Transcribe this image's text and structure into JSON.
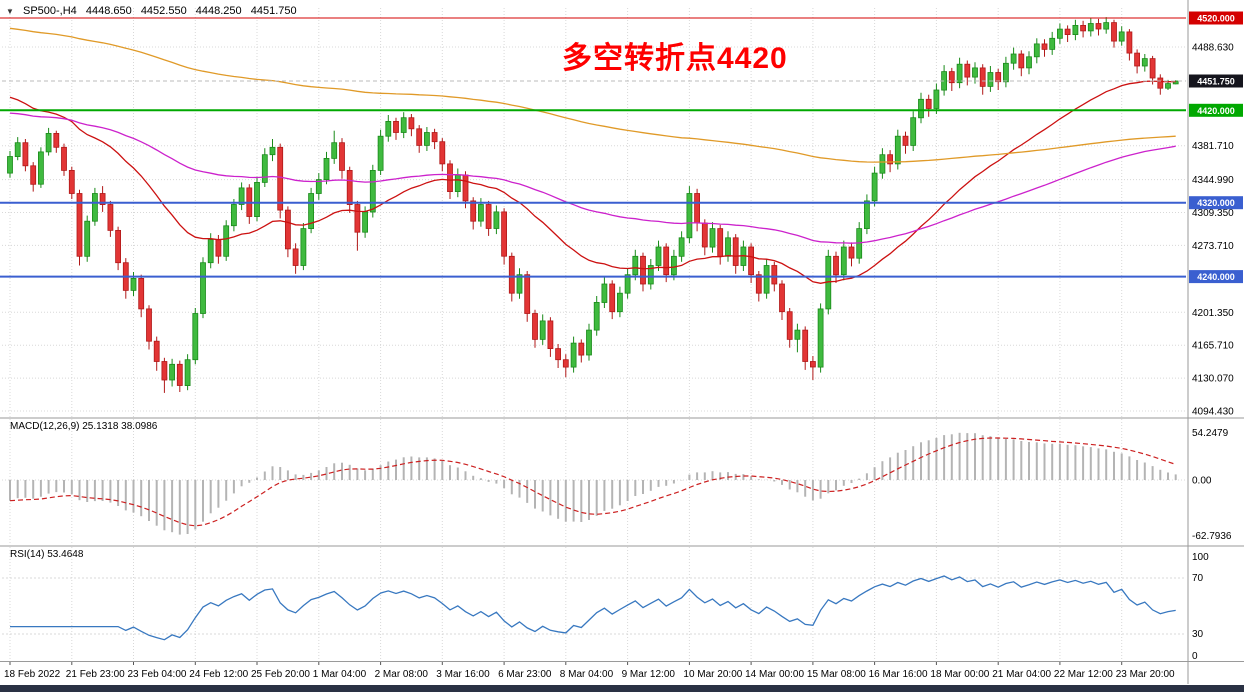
{
  "colors": {
    "up_fill": "#3fba3f",
    "up_stroke": "#1a8a1a",
    "down_fill": "#e23535",
    "down_stroke": "#b01818",
    "grid": "#d8d8d8",
    "separator": "#9a9a9a",
    "macd_hist": "#b4b4b4",
    "macd_signal": "#cc2020",
    "rsi_line": "#3878c0",
    "current_line": "#bbbbbb",
    "bottom_bar": "#2a3144",
    "axis_text": "#000000",
    "annotation_red": "#fe0000"
  },
  "icons": {
    "header_marker": "▼"
  },
  "header": {
    "symbol_period": "SP500-,H4",
    "open": "4448.650",
    "high": "4452.550",
    "low": "4448.250",
    "close": "4451.750"
  },
  "annotation": {
    "text": "多空转折点4420"
  },
  "main_chart": {
    "price_axis": {
      "plain_labels": [
        "4488.630",
        "4381.710",
        "4344.990",
        "4309.350",
        "4273.710",
        "4201.350",
        "4165.710",
        "4130.070",
        "4094.430"
      ],
      "badges": [
        {
          "value": "4520.000",
          "price": 4520.0,
          "color": "#d40000",
          "type": "hline-red"
        },
        {
          "value": "4451.750",
          "price": 4451.75,
          "color": "#15151d",
          "type": "current-price"
        },
        {
          "value": "4420.000",
          "price": 4420.0,
          "color": "#00a800",
          "type": "hline-green"
        },
        {
          "value": "4320.000",
          "price": 4320.0,
          "color": "#3a5fd0",
          "type": "hline-blue"
        },
        {
          "value": "4240.000",
          "price": 4240.0,
          "color": "#3a5fd0",
          "type": "hline-blue"
        }
      ]
    }
  },
  "macd": {
    "label": "MACD(12,26,9) 25.1318 38.0986",
    "value_main": 25.1318,
    "value_signal": 38.0986,
    "axis_labels": [
      "54.2479",
      "0.00",
      "-62.7936"
    ],
    "axis_max": 54.2479,
    "axis_min": -62.7936,
    "seed_fast": 4372,
    "seed_slow": 4398
  },
  "rsi": {
    "label": "RSI(14) 53.4648",
    "value": 53.4648,
    "period": 14,
    "levels": [
      70,
      30
    ],
    "axis_labels": [
      "100",
      "70",
      "30",
      "0"
    ]
  },
  "chart_data": {
    "type": "candlestick",
    "symbol": "SP500-",
    "timeframe": "H4",
    "current_price": 4451.75,
    "candles_per_label": 8,
    "x_labels": [
      "18 Feb 2022",
      "21 Feb 23:00",
      "23 Feb 04:00",
      "24 Feb 12:00",
      "25 Feb 20:00",
      "1 Mar 04:00",
      "2 Mar 08:00",
      "3 Mar 16:00",
      "6 Mar 23:00",
      "8 Mar 04:00",
      "9 Mar 12:00",
      "10 Mar 20:00",
      "14 Mar 00:00",
      "15 Mar 08:00",
      "16 Mar 16:00",
      "18 Mar 00:00",
      "21 Mar 04:00",
      "22 Mar 12:00",
      "23 Mar 20:00"
    ],
    "hlines": [
      {
        "price": 4520,
        "color": "#d40000",
        "width": 1
      },
      {
        "price": 4420,
        "color": "#00a800",
        "width": 2
      },
      {
        "price": 4320,
        "color": "#3a5fd0",
        "width": 2
      },
      {
        "price": 4240,
        "color": "#3a5fd0",
        "width": 2
      }
    ],
    "overlays": [
      {
        "name": "ma-fast-red",
        "type": "ema",
        "period": 34,
        "seed": 4438,
        "color": "#cc1111"
      },
      {
        "name": "ma-mid-magenta",
        "type": "ema",
        "period": 100,
        "seed": 4418,
        "color": "#cc22cc"
      },
      {
        "name": "ma-slow-orange",
        "type": "ema",
        "period": 240,
        "seed": 4510,
        "color": "#e09a28"
      }
    ],
    "ohlc": [
      [
        4352,
        4376,
        4347,
        4370
      ],
      [
        4370,
        4391,
        4366,
        4385
      ],
      [
        4385,
        4389,
        4354,
        4360
      ],
      [
        4360,
        4364,
        4332,
        4340
      ],
      [
        4340,
        4380,
        4336,
        4375
      ],
      [
        4375,
        4401,
        4371,
        4395
      ],
      [
        4395,
        4398,
        4374,
        4380
      ],
      [
        4380,
        4384,
        4349,
        4355
      ],
      [
        4355,
        4359,
        4324,
        4330
      ],
      [
        4330,
        4334,
        4252,
        4262
      ],
      [
        4262,
        4306,
        4256,
        4300
      ],
      [
        4300,
        4336,
        4295,
        4330
      ],
      [
        4330,
        4338,
        4310,
        4318
      ],
      [
        4318,
        4322,
        4283,
        4290
      ],
      [
        4290,
        4294,
        4247,
        4255
      ],
      [
        4255,
        4260,
        4216,
        4225
      ],
      [
        4225,
        4245,
        4219,
        4238
      ],
      [
        4238,
        4242,
        4196,
        4205
      ],
      [
        4205,
        4209,
        4161,
        4170
      ],
      [
        4170,
        4175,
        4138,
        4148
      ],
      [
        4148,
        4152,
        4114,
        4128
      ],
      [
        4128,
        4151,
        4121,
        4145
      ],
      [
        4145,
        4149,
        4115,
        4122
      ],
      [
        4122,
        4156,
        4117,
        4150
      ],
      [
        4150,
        4206,
        4145,
        4200
      ],
      [
        4200,
        4261,
        4195,
        4255
      ],
      [
        4255,
        4287,
        4249,
        4280
      ],
      [
        4280,
        4285,
        4254,
        4262
      ],
      [
        4262,
        4301,
        4257,
        4295
      ],
      [
        4295,
        4324,
        4289,
        4318
      ],
      [
        4318,
        4342,
        4312,
        4336
      ],
      [
        4336,
        4340,
        4297,
        4305
      ],
      [
        4305,
        4348,
        4300,
        4342
      ],
      [
        4342,
        4379,
        4337,
        4372
      ],
      [
        4372,
        4389,
        4365,
        4380
      ],
      [
        4380,
        4384,
        4303,
        4312
      ],
      [
        4312,
        4316,
        4261,
        4270
      ],
      [
        4270,
        4276,
        4243,
        4252
      ],
      [
        4252,
        4298,
        4247,
        4292
      ],
      [
        4292,
        4336,
        4287,
        4330
      ],
      [
        4330,
        4352,
        4323,
        4345
      ],
      [
        4345,
        4375,
        4340,
        4368
      ],
      [
        4368,
        4398,
        4362,
        4385
      ],
      [
        4385,
        4390,
        4346,
        4355
      ],
      [
        4355,
        4359,
        4309,
        4318
      ],
      [
        4318,
        4322,
        4268,
        4288
      ],
      [
        4288,
        4316,
        4282,
        4310
      ],
      [
        4310,
        4361,
        4304,
        4355
      ],
      [
        4355,
        4399,
        4350,
        4392
      ],
      [
        4392,
        4415,
        4386,
        4408
      ],
      [
        4408,
        4412,
        4388,
        4396
      ],
      [
        4396,
        4418,
        4390,
        4412
      ],
      [
        4412,
        4416,
        4392,
        4400
      ],
      [
        4400,
        4404,
        4374,
        4382
      ],
      [
        4382,
        4402,
        4376,
        4396
      ],
      [
        4396,
        4400,
        4378,
        4386
      ],
      [
        4386,
        4390,
        4354,
        4362
      ],
      [
        4362,
        4366,
        4324,
        4332
      ],
      [
        4332,
        4357,
        4326,
        4350
      ],
      [
        4350,
        4354,
        4314,
        4322
      ],
      [
        4322,
        4326,
        4291,
        4300
      ],
      [
        4300,
        4325,
        4294,
        4318
      ],
      [
        4318,
        4322,
        4284,
        4292
      ],
      [
        4292,
        4317,
        4286,
        4310
      ],
      [
        4310,
        4314,
        4253,
        4262
      ],
      [
        4262,
        4266,
        4213,
        4222
      ],
      [
        4222,
        4249,
        4216,
        4242
      ],
      [
        4242,
        4246,
        4191,
        4200
      ],
      [
        4200,
        4204,
        4163,
        4172
      ],
      [
        4172,
        4199,
        4166,
        4192
      ],
      [
        4192,
        4196,
        4153,
        4162
      ],
      [
        4162,
        4167,
        4141,
        4150
      ],
      [
        4150,
        4156,
        4131,
        4142
      ],
      [
        4142,
        4175,
        4136,
        4168
      ],
      [
        4168,
        4172,
        4147,
        4155
      ],
      [
        4155,
        4189,
        4149,
        4182
      ],
      [
        4182,
        4219,
        4176,
        4212
      ],
      [
        4212,
        4239,
        4206,
        4232
      ],
      [
        4232,
        4236,
        4194,
        4202
      ],
      [
        4202,
        4229,
        4196,
        4222
      ],
      [
        4222,
        4249,
        4216,
        4242
      ],
      [
        4242,
        4269,
        4236,
        4262
      ],
      [
        4262,
        4266,
        4224,
        4232
      ],
      [
        4232,
        4259,
        4226,
        4252
      ],
      [
        4252,
        4279,
        4246,
        4272
      ],
      [
        4272,
        4276,
        4234,
        4242
      ],
      [
        4242,
        4269,
        4236,
        4262
      ],
      [
        4262,
        4289,
        4256,
        4282
      ],
      [
        4282,
        4338,
        4276,
        4330
      ],
      [
        4330,
        4335,
        4289,
        4298
      ],
      [
        4298,
        4302,
        4263,
        4272
      ],
      [
        4272,
        4299,
        4266,
        4292
      ],
      [
        4292,
        4296,
        4253,
        4262
      ],
      [
        4262,
        4289,
        4256,
        4282
      ],
      [
        4282,
        4286,
        4243,
        4252
      ],
      [
        4252,
        4279,
        4246,
        4272
      ],
      [
        4272,
        4276,
        4233,
        4242
      ],
      [
        4242,
        4246,
        4213,
        4222
      ],
      [
        4222,
        4259,
        4216,
        4252
      ],
      [
        4252,
        4256,
        4224,
        4232
      ],
      [
        4232,
        4236,
        4193,
        4202
      ],
      [
        4202,
        4206,
        4163,
        4172
      ],
      [
        4172,
        4189,
        4158,
        4182
      ],
      [
        4182,
        4186,
        4139,
        4148
      ],
      [
        4148,
        4154,
        4128,
        4142
      ],
      [
        4142,
        4211,
        4136,
        4205
      ],
      [
        4205,
        4269,
        4199,
        4262
      ],
      [
        4262,
        4267,
        4233,
        4242
      ],
      [
        4242,
        4279,
        4236,
        4272
      ],
      [
        4272,
        4277,
        4251,
        4260
      ],
      [
        4260,
        4299,
        4254,
        4292
      ],
      [
        4292,
        4329,
        4286,
        4322
      ],
      [
        4322,
        4359,
        4316,
        4352
      ],
      [
        4352,
        4379,
        4346,
        4372
      ],
      [
        4372,
        4377,
        4353,
        4362
      ],
      [
        4362,
        4399,
        4356,
        4392
      ],
      [
        4392,
        4397,
        4373,
        4382
      ],
      [
        4382,
        4419,
        4376,
        4412
      ],
      [
        4412,
        4439,
        4406,
        4432
      ],
      [
        4432,
        4437,
        4413,
        4422
      ],
      [
        4422,
        4449,
        4416,
        4442
      ],
      [
        4442,
        4469,
        4436,
        4462
      ],
      [
        4462,
        4466,
        4441,
        4450
      ],
      [
        4450,
        4477,
        4444,
        4470
      ],
      [
        4470,
        4474,
        4447,
        4456
      ],
      [
        4456,
        4472,
        4449,
        4466
      ],
      [
        4466,
        4470,
        4437,
        4446
      ],
      [
        4446,
        4468,
        4440,
        4461
      ],
      [
        4461,
        4465,
        4442,
        4451
      ],
      [
        4451,
        4478,
        4445,
        4471
      ],
      [
        4471,
        4488,
        4464,
        4481
      ],
      [
        4481,
        4485,
        4457,
        4466
      ],
      [
        4466,
        4484,
        4459,
        4478
      ],
      [
        4478,
        4498,
        4471,
        4492
      ],
      [
        4492,
        4497,
        4478,
        4486
      ],
      [
        4486,
        4505,
        4480,
        4498
      ],
      [
        4498,
        4514,
        4492,
        4508
      ],
      [
        4508,
        4512,
        4494,
        4502
      ],
      [
        4502,
        4518,
        4496,
        4512
      ],
      [
        4512,
        4517,
        4499,
        4506
      ],
      [
        4506,
        4520,
        4500,
        4514
      ],
      [
        4514,
        4519,
        4501,
        4508
      ],
      [
        4508,
        4521,
        4503,
        4515
      ],
      [
        4515,
        4518,
        4488,
        4495
      ],
      [
        4495,
        4511,
        4490,
        4505
      ],
      [
        4505,
        4508,
        4474,
        4482
      ],
      [
        4482,
        4486,
        4460,
        4468
      ],
      [
        4468,
        4481,
        4462,
        4476
      ],
      [
        4476,
        4479,
        4448,
        4455
      ],
      [
        4455,
        4459,
        4437,
        4444
      ],
      [
        4444,
        4453,
        4442,
        4449
      ],
      [
        4448.65,
        4452.55,
        4448.25,
        4451.75
      ]
    ]
  }
}
